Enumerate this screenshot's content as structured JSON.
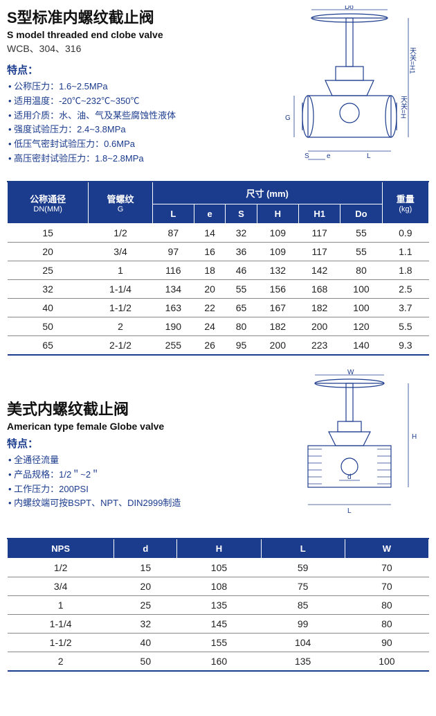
{
  "section1": {
    "title_cn": "S型标准内螺纹截止阀",
    "title_en": "S model threaded end clobe valve",
    "materials": "WCB、304、316",
    "features_label": "特点：",
    "features": [
      "公称压力：1.6~2.5MPa",
      "适用温度：-20℃~232℃~350℃",
      "适用介质：水、油、气及某些腐蚀性液体",
      "强度试验压力：2.4~3.8MPa",
      "低压气密封试验压力：0.6MPa",
      "高压密封试验压力：1.8~2.8MPa"
    ],
    "diagram_labels": {
      "Do": "Do",
      "H1": "天关=H1",
      "H": "天关=H",
      "G": "G",
      "S": "S",
      "e": "e",
      "L": "L"
    },
    "table": {
      "header_dn_cn": "公称通径",
      "header_dn_en": "DN(MM)",
      "header_g_cn": "管螺纹",
      "header_g_en": "G",
      "header_dim": "尺寸 (mm)",
      "dim_cols": [
        "L",
        "e",
        "S",
        "H",
        "H1",
        "Do"
      ],
      "header_wt_cn": "重量",
      "header_wt_en": "(kg)",
      "rows": [
        {
          "dn": "15",
          "g": "1/2",
          "L": "87",
          "e": "14",
          "S": "32",
          "H": "109",
          "H1": "117",
          "Do": "55",
          "wt": "0.9"
        },
        {
          "dn": "20",
          "g": "3/4",
          "L": "97",
          "e": "16",
          "S": "36",
          "H": "109",
          "H1": "117",
          "Do": "55",
          "wt": "1.1"
        },
        {
          "dn": "25",
          "g": "1",
          "L": "116",
          "e": "18",
          "S": "46",
          "H": "132",
          "H1": "142",
          "Do": "80",
          "wt": "1.8"
        },
        {
          "dn": "32",
          "g": "1-1/4",
          "L": "134",
          "e": "20",
          "S": "55",
          "H": "156",
          "H1": "168",
          "Do": "100",
          "wt": "2.5"
        },
        {
          "dn": "40",
          "g": "1-1/2",
          "L": "163",
          "e": "22",
          "S": "65",
          "H": "167",
          "H1": "182",
          "Do": "100",
          "wt": "3.7"
        },
        {
          "dn": "50",
          "g": "2",
          "L": "190",
          "e": "24",
          "S": "80",
          "H": "182",
          "H1": "200",
          "Do": "120",
          "wt": "5.5"
        },
        {
          "dn": "65",
          "g": "2-1/2",
          "L": "255",
          "e": "26",
          "S": "95",
          "H": "200",
          "H1": "223",
          "Do": "140",
          "wt": "9.3"
        }
      ]
    }
  },
  "section2": {
    "title_cn": "美式内螺纹截止阀",
    "title_en": "American type female Globe valve",
    "features_label": "特点：",
    "features": [
      "全通径流量",
      "产品规格：1/2＂~2＂",
      "工作压力：200PSI",
      "内螺纹端可按BSPT、NPT、DIN2999制造"
    ],
    "diagram_labels": {
      "W": "W",
      "H": "H",
      "d": "d",
      "L": "L"
    },
    "table": {
      "cols": [
        "NPS",
        "d",
        "H",
        "L",
        "W"
      ],
      "rows": [
        {
          "NPS": "1/2",
          "d": "15",
          "H": "105",
          "L": "59",
          "W": "70"
        },
        {
          "NPS": "3/4",
          "d": "20",
          "H": "108",
          "L": "75",
          "W": "70"
        },
        {
          "NPS": "1",
          "d": "25",
          "H": "135",
          "L": "85",
          "W": "80"
        },
        {
          "NPS": "1-1/4",
          "d": "32",
          "H": "145",
          "L": "99",
          "W": "80"
        },
        {
          "NPS": "1-1/2",
          "d": "40",
          "H": "155",
          "L": "104",
          "W": "90"
        },
        {
          "NPS": "2",
          "d": "50",
          "H": "160",
          "L": "135",
          "W": "100"
        }
      ]
    }
  },
  "colors": {
    "accent": "#1b3b8d",
    "line": "#888"
  }
}
